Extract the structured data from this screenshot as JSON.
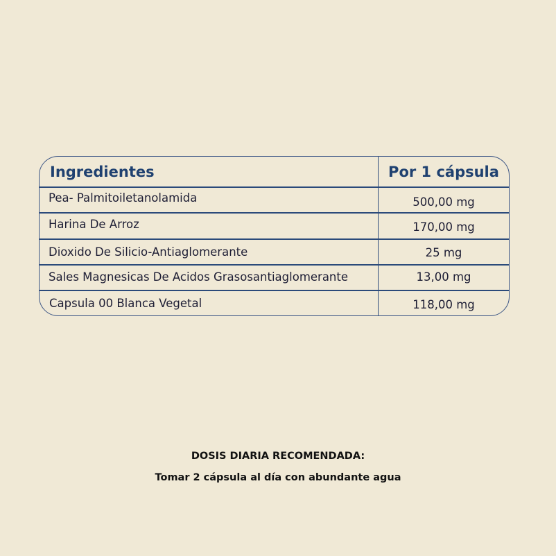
{
  "table": {
    "headers": {
      "ingredient": "Ingredientes",
      "amount": "Por 1 cápsula"
    },
    "rows": [
      {
        "ingredient": "Pea- Palmitoiletanolamida",
        "amount": "500,00 mg"
      },
      {
        "ingredient": "Harina De Arroz",
        "amount": "170,00 mg"
      },
      {
        "ingredient": "Dioxido De Silicio-Antiaglomerante",
        "amount": "25 mg"
      },
      {
        "ingredient": "Sales Magnesicas De Acidos Grasosantiaglomerante",
        "amount": "13,00 mg"
      },
      {
        "ingredient": "Capsula 00 Blanca Vegetal",
        "amount": "118,00 mg"
      }
    ]
  },
  "footer": {
    "title": "DOSIS DIARIA RECOMENDADA:",
    "instruction": "Tomar 2 cápsula al día con abundante agua"
  },
  "colors": {
    "background": "#f0e9d6",
    "border": "#2b4a7a",
    "header_text": "#1f4170",
    "body_text": "#1e1e35"
  }
}
